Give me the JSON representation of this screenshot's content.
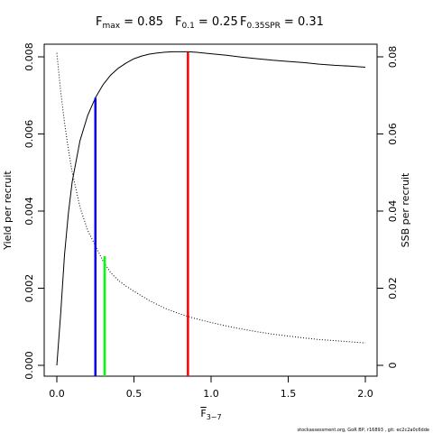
{
  "chart_data": {
    "type": "line",
    "title": {
      "fmax_name": "F",
      "fmax_sub": "max",
      "fmax_value": "= 0.85",
      "f01_name": "F",
      "f01_sub": "0.1",
      "f01_value": "= 0.25",
      "fspr_name": "F",
      "fspr_sub": "0.35SPR",
      "fspr_value": "= 0.31"
    },
    "xlabel": {
      "main": "F",
      "sub": "3−7"
    },
    "ylabel_left": "Yield per recruit",
    "ylabel_right": "SSB per recruit",
    "xlim": [
      0,
      2
    ],
    "ylim_left": [
      0,
      0.008
    ],
    "ylim_right": [
      0,
      0.08
    ],
    "x_ticks": [
      "0.0",
      "0.5",
      "1.0",
      "1.5",
      "2.0"
    ],
    "y_left_ticks": [
      "0.000",
      "0.002",
      "0.004",
      "0.006",
      "0.008"
    ],
    "y_right_ticks": [
      "0",
      "0.02",
      "0.04",
      "0.06",
      "0.08"
    ],
    "series": [
      {
        "axis": "left",
        "style": "solid",
        "color": "#000000",
        "x": [
          0,
          0.025,
          0.05,
          0.075,
          0.1,
          0.15,
          0.2,
          0.25,
          0.3,
          0.35,
          0.4,
          0.45,
          0.5,
          0.55,
          0.6,
          0.65,
          0.7,
          0.75,
          0.8,
          0.85,
          0.9,
          1.0,
          1.1,
          1.2,
          1.3,
          1.4,
          1.5,
          1.6,
          1.7,
          1.8,
          1.9,
          2.0
        ],
        "y": [
          0.0,
          0.00135,
          0.00286,
          0.00394,
          0.00477,
          0.00583,
          0.00648,
          0.00694,
          0.00728,
          0.00753,
          0.00771,
          0.00784,
          0.00795,
          0.00802,
          0.00807,
          0.0081,
          0.00812,
          0.00813,
          0.00813,
          0.00813,
          0.00812,
          0.00808,
          0.00804,
          0.00799,
          0.00795,
          0.00791,
          0.00788,
          0.00785,
          0.00781,
          0.00778,
          0.00776,
          0.00773
        ]
      },
      {
        "axis": "right",
        "style": "dotted",
        "color": "#000000",
        "x": [
          0,
          0.025,
          0.05,
          0.075,
          0.1,
          0.15,
          0.2,
          0.25,
          0.3,
          0.35,
          0.4,
          0.45,
          0.5,
          0.6,
          0.7,
          0.8,
          0.9,
          1.0,
          1.1,
          1.2,
          1.3,
          1.4,
          1.5,
          1.6,
          1.7,
          1.8,
          1.9,
          2.0
        ],
        "y": [
          0.081,
          0.071,
          0.063,
          0.056,
          0.05,
          0.041,
          0.035,
          0.031,
          0.027,
          0.024,
          0.022,
          0.0205,
          0.0192,
          0.0168,
          0.0148,
          0.0133,
          0.0121,
          0.0111,
          0.0102,
          0.0094,
          0.0087,
          0.0081,
          0.0076,
          0.0071,
          0.0067,
          0.0064,
          0.0061,
          0.0058
        ]
      }
    ],
    "vlines": [
      {
        "x": 0.25,
        "y": 0.00694,
        "color": "#0000ff"
      },
      {
        "x": 0.31,
        "y": 0.00283,
        "color": "#00ff00"
      },
      {
        "x": 0.85,
        "y": 0.00813,
        "color": "#ff0000"
      }
    ]
  },
  "footnote": "stockassessment.org, GoR BP, r16893 , git: ec2c2a0c6dde"
}
